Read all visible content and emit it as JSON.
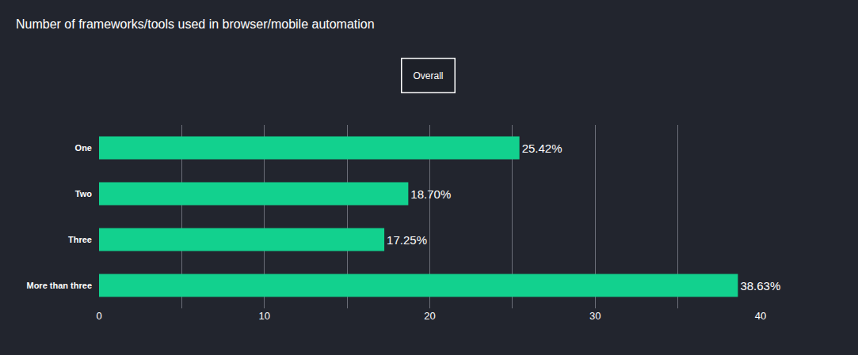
{
  "chart_data": {
    "type": "bar",
    "orientation": "horizontal",
    "title": "Number of frameworks/tools used in browser/mobile automation",
    "annotations": [
      "Overall"
    ],
    "categories": [
      "One",
      "Two",
      "Three",
      "More than three"
    ],
    "values": [
      25.42,
      18.7,
      17.25,
      38.63
    ],
    "value_labels": [
      "25.42%",
      "18.70%",
      "17.25%",
      "38.63%"
    ],
    "color": "#12d18e",
    "xlim": [
      0,
      40
    ],
    "xticks": [
      0,
      10,
      20,
      30,
      40
    ],
    "grid": true,
    "data_labels": true
  }
}
